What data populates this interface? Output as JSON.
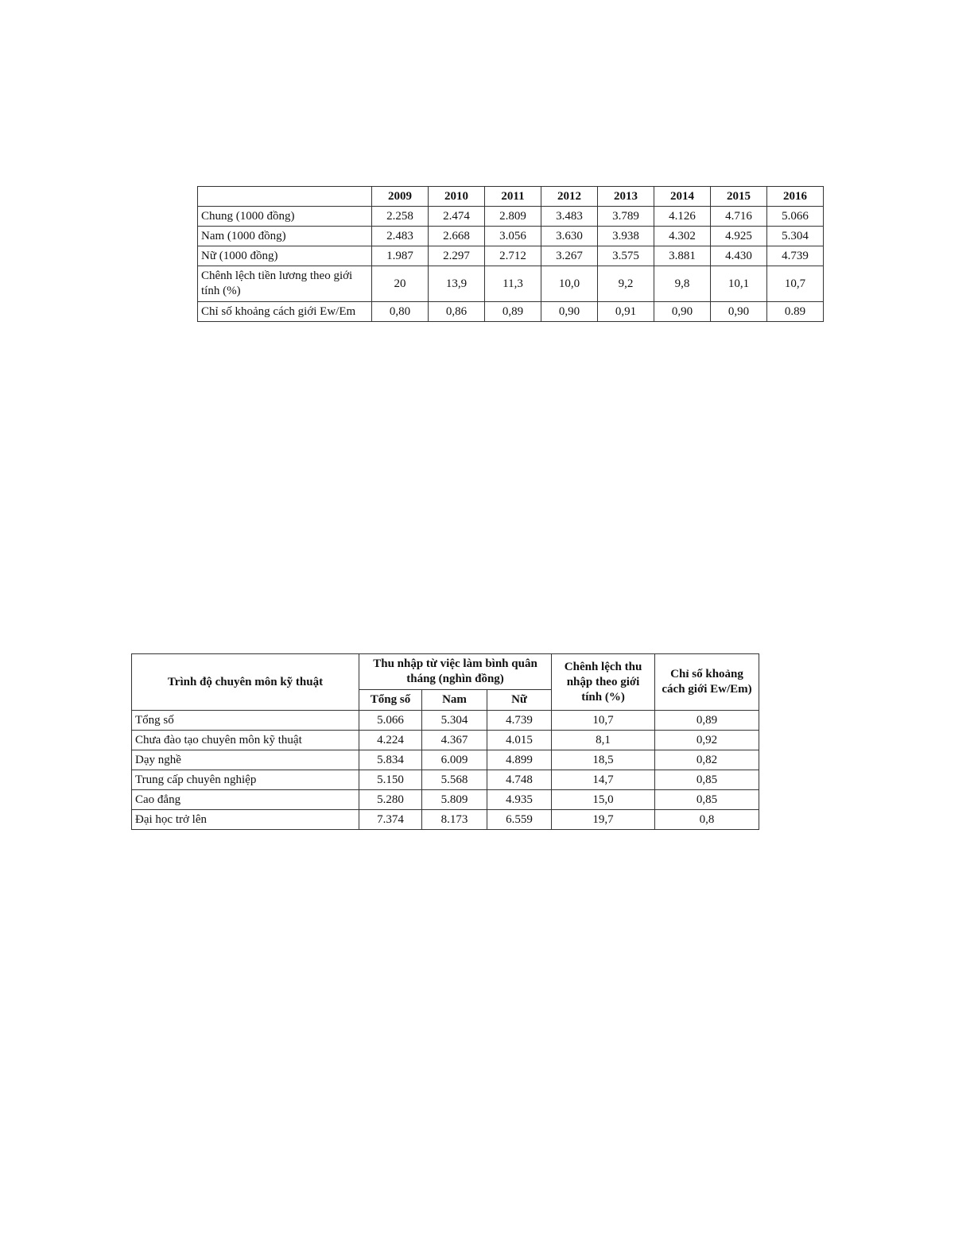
{
  "table1": {
    "headers": [
      "",
      "2009",
      "2010",
      "2011",
      "2012",
      "2013",
      "2014",
      "2015",
      "2016"
    ],
    "rows": [
      {
        "label": "Chung (1000 đồng)",
        "values": [
          "2.258",
          "2.474",
          "2.809",
          "3.483",
          "3.789",
          "4.126",
          "4.716",
          "5.066"
        ]
      },
      {
        "label": "Nam (1000 đồng)",
        "values": [
          "2.483",
          "2.668",
          "3.056",
          "3.630",
          "3.938",
          "4.302",
          "4.925",
          "5.304"
        ]
      },
      {
        "label": "Nữ (1000 đồng)",
        "values": [
          "1.987",
          "2.297",
          "2.712",
          "3.267",
          "3.575",
          "3.881",
          "4.430",
          "4.739"
        ]
      },
      {
        "label": "Chênh lệch tiền lương theo giới tính (%)",
        "values": [
          "20",
          "13,9",
          "11,3",
          "10,0",
          "9,2",
          "9,8",
          "10,1",
          "10,7"
        ]
      },
      {
        "label": "Chỉ số khoảng cách giới Ew/Em",
        "values": [
          "0,80",
          "0,86",
          "0,89",
          "0,90",
          "0,91",
          "0,90",
          "0,90",
          "0.89"
        ]
      }
    ]
  },
  "table2": {
    "header_level": "Trình độ chuyên môn kỹ thuật",
    "header_income": "Thu nhập từ việc làm bình quân tháng (nghìn đồng)",
    "header_gap": "Chênh lệch thu nhập theo giới tính  (%)",
    "header_index": "Chỉ số khoảng cách giới Ew/Em)",
    "subheaders": [
      "Tổng số",
      "Nam",
      "Nữ"
    ],
    "rows": [
      {
        "label": "Tổng số",
        "values": [
          "5.066",
          "5.304",
          "4.739",
          "10,7",
          "0,89"
        ]
      },
      {
        "label": "Chưa đào tạo chuyên môn kỹ thuật",
        "values": [
          "4.224",
          "4.367",
          "4.015",
          "8,1",
          "0,92"
        ]
      },
      {
        "label": "Dạy nghề",
        "values": [
          "5.834",
          "6.009",
          "4.899",
          "18,5",
          "0,82"
        ]
      },
      {
        "label": "Trung cấp chuyên nghiệp",
        "values": [
          "5.150",
          "5.568",
          "4.748",
          "14,7",
          "0,85"
        ]
      },
      {
        "label": "Cao đẳng",
        "values": [
          "5.280",
          "5.809",
          "4.935",
          "15,0",
          "0,85"
        ]
      },
      {
        "label": "Đại học trở lên",
        "values": [
          "7.374",
          "8.173",
          "6.559",
          "19,7",
          "0,8"
        ]
      }
    ]
  }
}
